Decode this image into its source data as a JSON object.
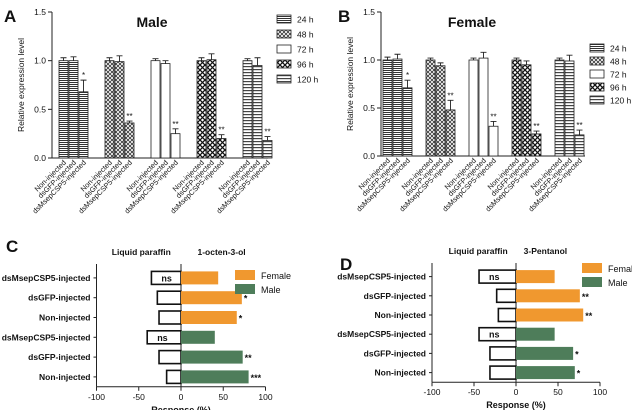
{
  "chart_data": [
    {
      "panel": "A",
      "type": "bar",
      "title": "Male",
      "ylabel": "Relative expression level",
      "ylim": [
        0,
        1.5
      ],
      "yticks": [
        "0.0",
        "0.5",
        "1.0",
        "1.5"
      ],
      "groups": [
        "24 h",
        "48 h",
        "72 h",
        "96 h",
        "120 h"
      ],
      "categories": [
        "Non-injected",
        "dsGFP-injected",
        "dsMsepCSP5-injected"
      ],
      "legend_position": "right",
      "values": [
        [
          1.0,
          1.0,
          0.68
        ],
        [
          1.0,
          0.99,
          0.36
        ],
        [
          1.0,
          0.97,
          0.25
        ],
        [
          1.0,
          1.01,
          0.2
        ],
        [
          1.0,
          0.95,
          0.18
        ]
      ],
      "errors": [
        [
          0.03,
          0.04,
          0.12
        ],
        [
          0.03,
          0.06,
          0.02
        ],
        [
          0.02,
          0.03,
          0.05
        ],
        [
          0.03,
          0.06,
          0.04
        ],
        [
          0.02,
          0.08,
          0.04
        ]
      ],
      "significance": [
        [
          "",
          "",
          "*"
        ],
        [
          "",
          "",
          "**"
        ],
        [
          "",
          "",
          "**"
        ],
        [
          "",
          "",
          "**"
        ],
        [
          "",
          "",
          "**"
        ]
      ]
    },
    {
      "panel": "B",
      "type": "bar",
      "title": "Female",
      "ylabel": "Relative expression level",
      "ylim": [
        0,
        1.5
      ],
      "yticks": [
        "0.0",
        "0.5",
        "1.0",
        "1.5"
      ],
      "groups": [
        "24 h",
        "48 h",
        "72 h",
        "96 h",
        "120 h"
      ],
      "categories": [
        "Non-injected",
        "dsGFP-injected",
        "dsMsepCSP5-injected"
      ],
      "legend_position": "right",
      "values": [
        [
          1.0,
          1.01,
          0.71
        ],
        [
          1.0,
          0.94,
          0.48
        ],
        [
          1.0,
          1.02,
          0.31
        ],
        [
          1.0,
          0.95,
          0.23
        ],
        [
          1.0,
          0.99,
          0.22
        ]
      ],
      "errors": [
        [
          0.03,
          0.05,
          0.08
        ],
        [
          0.02,
          0.03,
          0.1
        ],
        [
          0.02,
          0.06,
          0.05
        ],
        [
          0.02,
          0.04,
          0.03
        ],
        [
          0.02,
          0.06,
          0.05
        ]
      ],
      "significance": [
        [
          "",
          "",
          "*"
        ],
        [
          "",
          "",
          "**"
        ],
        [
          "",
          "",
          "**"
        ],
        [
          "",
          "",
          "**"
        ],
        [
          "",
          "",
          "**"
        ]
      ]
    },
    {
      "panel": "C",
      "type": "bar",
      "orientation": "horizontal",
      "xlabel": "Response (%)",
      "xlim": [
        -100,
        100
      ],
      "xticks": [
        "-100",
        "-50",
        "0",
        "50",
        "100"
      ],
      "header_left": "Liquid paraffin",
      "header_right": "1-octen-3-ol",
      "legend_position": "top-right",
      "series": [
        {
          "name": "Female",
          "color": "#f0982f"
        },
        {
          "name": "Male",
          "color": "#4e7d5a"
        }
      ],
      "rows": [
        {
          "label": "dsMsepCSP5-injected",
          "series": "Female",
          "control": -35,
          "odor": 44,
          "sig": "",
          "ns": "ns"
        },
        {
          "label": "dsGFP-injected",
          "series": "Female",
          "control": -28,
          "odor": 72,
          "sig": "*",
          "ns": ""
        },
        {
          "label": "Non-injected",
          "series": "Female",
          "control": -26,
          "odor": 66,
          "sig": "*",
          "ns": ""
        },
        {
          "label": "dsMsepCSP5-injected",
          "series": "Male",
          "control": -40,
          "odor": 40,
          "sig": "",
          "ns": "ns"
        },
        {
          "label": "dsGFP-injected",
          "series": "Male",
          "control": -26,
          "odor": 73,
          "sig": "**",
          "ns": ""
        },
        {
          "label": "Non-injected",
          "series": "Male",
          "control": -17,
          "odor": 80,
          "sig": "***",
          "ns": ""
        }
      ]
    },
    {
      "panel": "D",
      "type": "bar",
      "orientation": "horizontal",
      "xlabel": "Response (%)",
      "xlim": [
        -100,
        100
      ],
      "xticks": [
        "-100",
        "-50",
        "0",
        "50",
        "100"
      ],
      "header_left": "Liquid paraffin",
      "header_right": "3-Pentanol",
      "legend_position": "top-right",
      "series": [
        {
          "name": "Female",
          "color": "#f0982f"
        },
        {
          "name": "Male",
          "color": "#4e7d5a"
        }
      ],
      "rows": [
        {
          "label": "dsMsepCSP5-injected",
          "series": "Female",
          "control": -44,
          "odor": 46,
          "sig": "",
          "ns": "ns"
        },
        {
          "label": "dsGFP-injected",
          "series": "Female",
          "control": -23,
          "odor": 76,
          "sig": "**",
          "ns": ""
        },
        {
          "label": "Non-injected",
          "series": "Female",
          "control": -21,
          "odor": 80,
          "sig": "**",
          "ns": ""
        },
        {
          "label": "dsMsepCSP5-injected",
          "series": "Male",
          "control": -44,
          "odor": 46,
          "sig": "",
          "ns": "ns"
        },
        {
          "label": "dsGFP-injected",
          "series": "Male",
          "control": -31,
          "odor": 68,
          "sig": "*",
          "ns": ""
        },
        {
          "label": "Non-injected",
          "series": "Male",
          "control": -31,
          "odor": 70,
          "sig": "*",
          "ns": ""
        }
      ]
    }
  ]
}
